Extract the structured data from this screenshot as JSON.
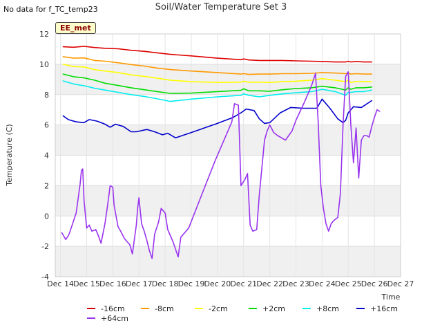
{
  "note": "No data for f_TC_temp23",
  "station": "EE_met",
  "chart_data": {
    "type": "line",
    "title": "Soil/Water Temperature Set 3",
    "xlabel": "Time",
    "ylabel": "Temperature (C)",
    "xlim": [
      13.8,
      27
    ],
    "ylim": [
      -4,
      12
    ],
    "x_ticks": [
      14,
      15,
      16,
      17,
      18,
      19,
      20,
      21,
      22,
      23,
      24,
      25,
      26,
      27
    ],
    "x_tick_labels": [
      "Dec 14",
      "Dec 15",
      "Dec 16",
      "Dec 17",
      "Dec 18",
      "Dec 19",
      "Dec 20",
      "Dec 21",
      "Dec 22",
      "Dec 23",
      "Dec 24",
      "Dec 25",
      "Dec 26",
      "Dec 27"
    ],
    "y_ticks": [
      -4,
      -2,
      0,
      2,
      4,
      6,
      8,
      10,
      12
    ],
    "grid": true,
    "background_bands": "alternating light gray",
    "legend_position": "bottom-center",
    "series": [
      {
        "name": "-16cm",
        "color": "#dd0000",
        "x": [
          14.1,
          14.5,
          14.9,
          15.3,
          15.7,
          16.2,
          16.7,
          17.2,
          17.7,
          18.2,
          19.0,
          20.0,
          20.9,
          21.0,
          21.2,
          21.6,
          22.0,
          22.5,
          23.0,
          23.6,
          24.0,
          24.5,
          24.9,
          25.0,
          25.1,
          25.3,
          25.6,
          25.9
        ],
        "y": [
          11.15,
          11.12,
          11.18,
          11.1,
          11.05,
          11.02,
          10.92,
          10.85,
          10.75,
          10.65,
          10.55,
          10.4,
          10.3,
          10.35,
          10.28,
          10.25,
          10.25,
          10.25,
          10.22,
          10.2,
          10.18,
          10.15,
          10.15,
          10.2,
          10.15,
          10.18,
          10.15,
          10.15
        ]
      },
      {
        "name": "-8cm",
        "color": "#ff9900",
        "x": [
          14.1,
          14.5,
          14.9,
          15.3,
          15.7,
          16.2,
          16.7,
          17.2,
          17.7,
          18.2,
          19.0,
          20.0,
          20.9,
          21.0,
          21.2,
          21.6,
          22.0,
          22.5,
          23.0,
          23.6,
          24.0,
          24.5,
          24.9,
          25.0,
          25.1,
          25.3,
          25.6,
          25.9
        ],
        "y": [
          10.5,
          10.4,
          10.42,
          10.25,
          10.2,
          10.1,
          9.98,
          9.88,
          9.75,
          9.65,
          9.55,
          9.45,
          9.35,
          9.38,
          9.33,
          9.35,
          9.35,
          9.38,
          9.38,
          9.4,
          9.45,
          9.42,
          9.38,
          9.42,
          9.35,
          9.38,
          9.35,
          9.35
        ]
      },
      {
        "name": "-2cm",
        "color": "#ffff00",
        "x": [
          14.1,
          14.5,
          14.9,
          15.3,
          15.7,
          16.2,
          16.7,
          17.2,
          17.7,
          18.2,
          19.0,
          20.0,
          20.9,
          21.0,
          21.2,
          21.6,
          22.0,
          22.5,
          23.0,
          23.6,
          24.0,
          24.5,
          24.9,
          25.0,
          25.1,
          25.3,
          25.6,
          25.9
        ],
        "y": [
          10.0,
          9.85,
          9.82,
          9.65,
          9.55,
          9.45,
          9.3,
          9.2,
          9.08,
          8.95,
          8.85,
          8.8,
          8.82,
          8.88,
          8.82,
          8.82,
          8.8,
          8.85,
          8.88,
          8.95,
          9.05,
          8.95,
          8.85,
          8.95,
          8.8,
          8.85,
          8.85,
          8.85
        ]
      },
      {
        "name": "+2cm",
        "color": "#00dd00",
        "x": [
          14.1,
          14.5,
          14.9,
          15.3,
          15.7,
          16.2,
          16.7,
          17.2,
          17.7,
          18.2,
          19.0,
          20.0,
          20.9,
          21.0,
          21.2,
          21.6,
          22.0,
          22.5,
          23.0,
          23.6,
          24.0,
          24.5,
          24.9,
          25.0,
          25.1,
          25.3,
          25.6,
          25.9
        ],
        "y": [
          9.35,
          9.18,
          9.1,
          8.95,
          8.75,
          8.6,
          8.45,
          8.32,
          8.2,
          8.08,
          8.1,
          8.2,
          8.28,
          8.38,
          8.25,
          8.25,
          8.22,
          8.32,
          8.4,
          8.45,
          8.55,
          8.45,
          8.3,
          8.45,
          8.35,
          8.45,
          8.45,
          8.5
        ]
      },
      {
        "name": "+8cm",
        "color": "#00eeee",
        "x": [
          14.1,
          14.5,
          14.9,
          15.3,
          15.7,
          16.2,
          16.7,
          17.2,
          17.7,
          18.2,
          19.0,
          20.0,
          20.9,
          21.0,
          21.2,
          21.6,
          22.0,
          22.5,
          23.0,
          23.6,
          24.0,
          24.5,
          24.9,
          25.0,
          25.1,
          25.3,
          25.6,
          25.9
        ],
        "y": [
          8.9,
          8.7,
          8.58,
          8.42,
          8.3,
          8.15,
          8.0,
          7.88,
          7.72,
          7.55,
          7.7,
          7.85,
          7.95,
          8.05,
          7.95,
          7.85,
          7.95,
          8.05,
          8.12,
          8.2,
          8.35,
          8.2,
          7.95,
          8.15,
          8.15,
          8.2,
          8.2,
          8.3
        ]
      },
      {
        "name": "+16cm",
        "color": "#0000cc",
        "x": [
          14.1,
          14.3,
          14.6,
          14.9,
          15.1,
          15.4,
          15.7,
          15.9,
          16.1,
          16.4,
          16.7,
          16.9,
          17.3,
          17.6,
          17.9,
          18.1,
          18.4,
          19.0,
          20.0,
          20.6,
          20.9,
          21.1,
          21.4,
          21.6,
          21.8,
          22.0,
          22.4,
          22.8,
          23.3,
          23.6,
          23.8,
          24.0,
          24.3,
          24.6,
          24.8,
          24.9,
          25.0,
          25.2,
          25.5,
          25.9
        ],
        "y": [
          6.6,
          6.35,
          6.2,
          6.15,
          6.35,
          6.25,
          6.05,
          5.85,
          6.05,
          5.9,
          5.55,
          5.55,
          5.7,
          5.55,
          5.35,
          5.45,
          5.15,
          5.5,
          6.1,
          6.5,
          6.8,
          7.05,
          6.95,
          6.4,
          6.1,
          6.15,
          6.8,
          7.15,
          7.1,
          7.1,
          7.1,
          7.7,
          7.1,
          6.4,
          6.15,
          6.3,
          6.8,
          7.2,
          7.15,
          7.6
        ]
      },
      {
        "name": "+64cm",
        "color": "#9933ee",
        "x": [
          14.05,
          14.2,
          14.3,
          14.35,
          14.6,
          14.75,
          14.8,
          14.85,
          14.9,
          15.0,
          15.1,
          15.2,
          15.35,
          15.45,
          15.55,
          15.7,
          15.8,
          15.9,
          16.0,
          16.05,
          16.2,
          16.3,
          16.45,
          16.55,
          16.65,
          16.75,
          16.9,
          16.95,
          17.0,
          17.1,
          17.2,
          17.3,
          17.4,
          17.5,
          17.6,
          17.75,
          17.85,
          18.0,
          18.1,
          18.3,
          18.5,
          18.6,
          18.9,
          19.4,
          19.9,
          20.55,
          20.65,
          20.8,
          20.9,
          21.05,
          21.15,
          21.25,
          21.35,
          21.5,
          21.6,
          21.8,
          21.9,
          22.0,
          22.15,
          22.3,
          22.6,
          22.85,
          23.0,
          23.3,
          23.6,
          23.75,
          23.85,
          23.95,
          24.05,
          24.15,
          24.25,
          24.35,
          24.45,
          24.6,
          24.7,
          24.8,
          24.9,
          25.0,
          25.1,
          25.2,
          25.3,
          25.4,
          25.5,
          25.6,
          25.7,
          25.8,
          25.9,
          26.0,
          26.1,
          26.2
        ],
        "y": [
          -1.1,
          -1.55,
          -1.3,
          -1.1,
          0.2,
          2.1,
          3.0,
          3.1,
          1.0,
          -0.8,
          -0.6,
          -1.0,
          -0.9,
          -1.3,
          -1.8,
          -0.5,
          0.7,
          2.0,
          1.9,
          0.7,
          -0.7,
          -1.0,
          -1.5,
          -1.7,
          -1.9,
          -2.5,
          -0.6,
          0.5,
          1.2,
          -0.5,
          -1.0,
          -1.6,
          -2.3,
          -2.8,
          -1.2,
          -0.4,
          0.5,
          0.2,
          -0.9,
          -1.7,
          -2.7,
          -1.4,
          -0.8,
          1.4,
          3.6,
          6.2,
          7.4,
          7.3,
          2.0,
          2.4,
          2.8,
          -0.6,
          -1.0,
          -0.9,
          1.4,
          5.0,
          5.6,
          6.0,
          5.5,
          5.3,
          5.0,
          5.6,
          6.3,
          7.4,
          8.6,
          9.4,
          6.2,
          2.0,
          0.5,
          -0.5,
          -1.0,
          -0.5,
          -0.3,
          -0.1,
          1.5,
          6.0,
          9.2,
          9.5,
          6.0,
          3.5,
          5.8,
          2.5,
          5.0,
          5.3,
          5.3,
          5.2,
          5.9,
          6.5,
          7.0,
          6.9
        ]
      }
    ]
  }
}
